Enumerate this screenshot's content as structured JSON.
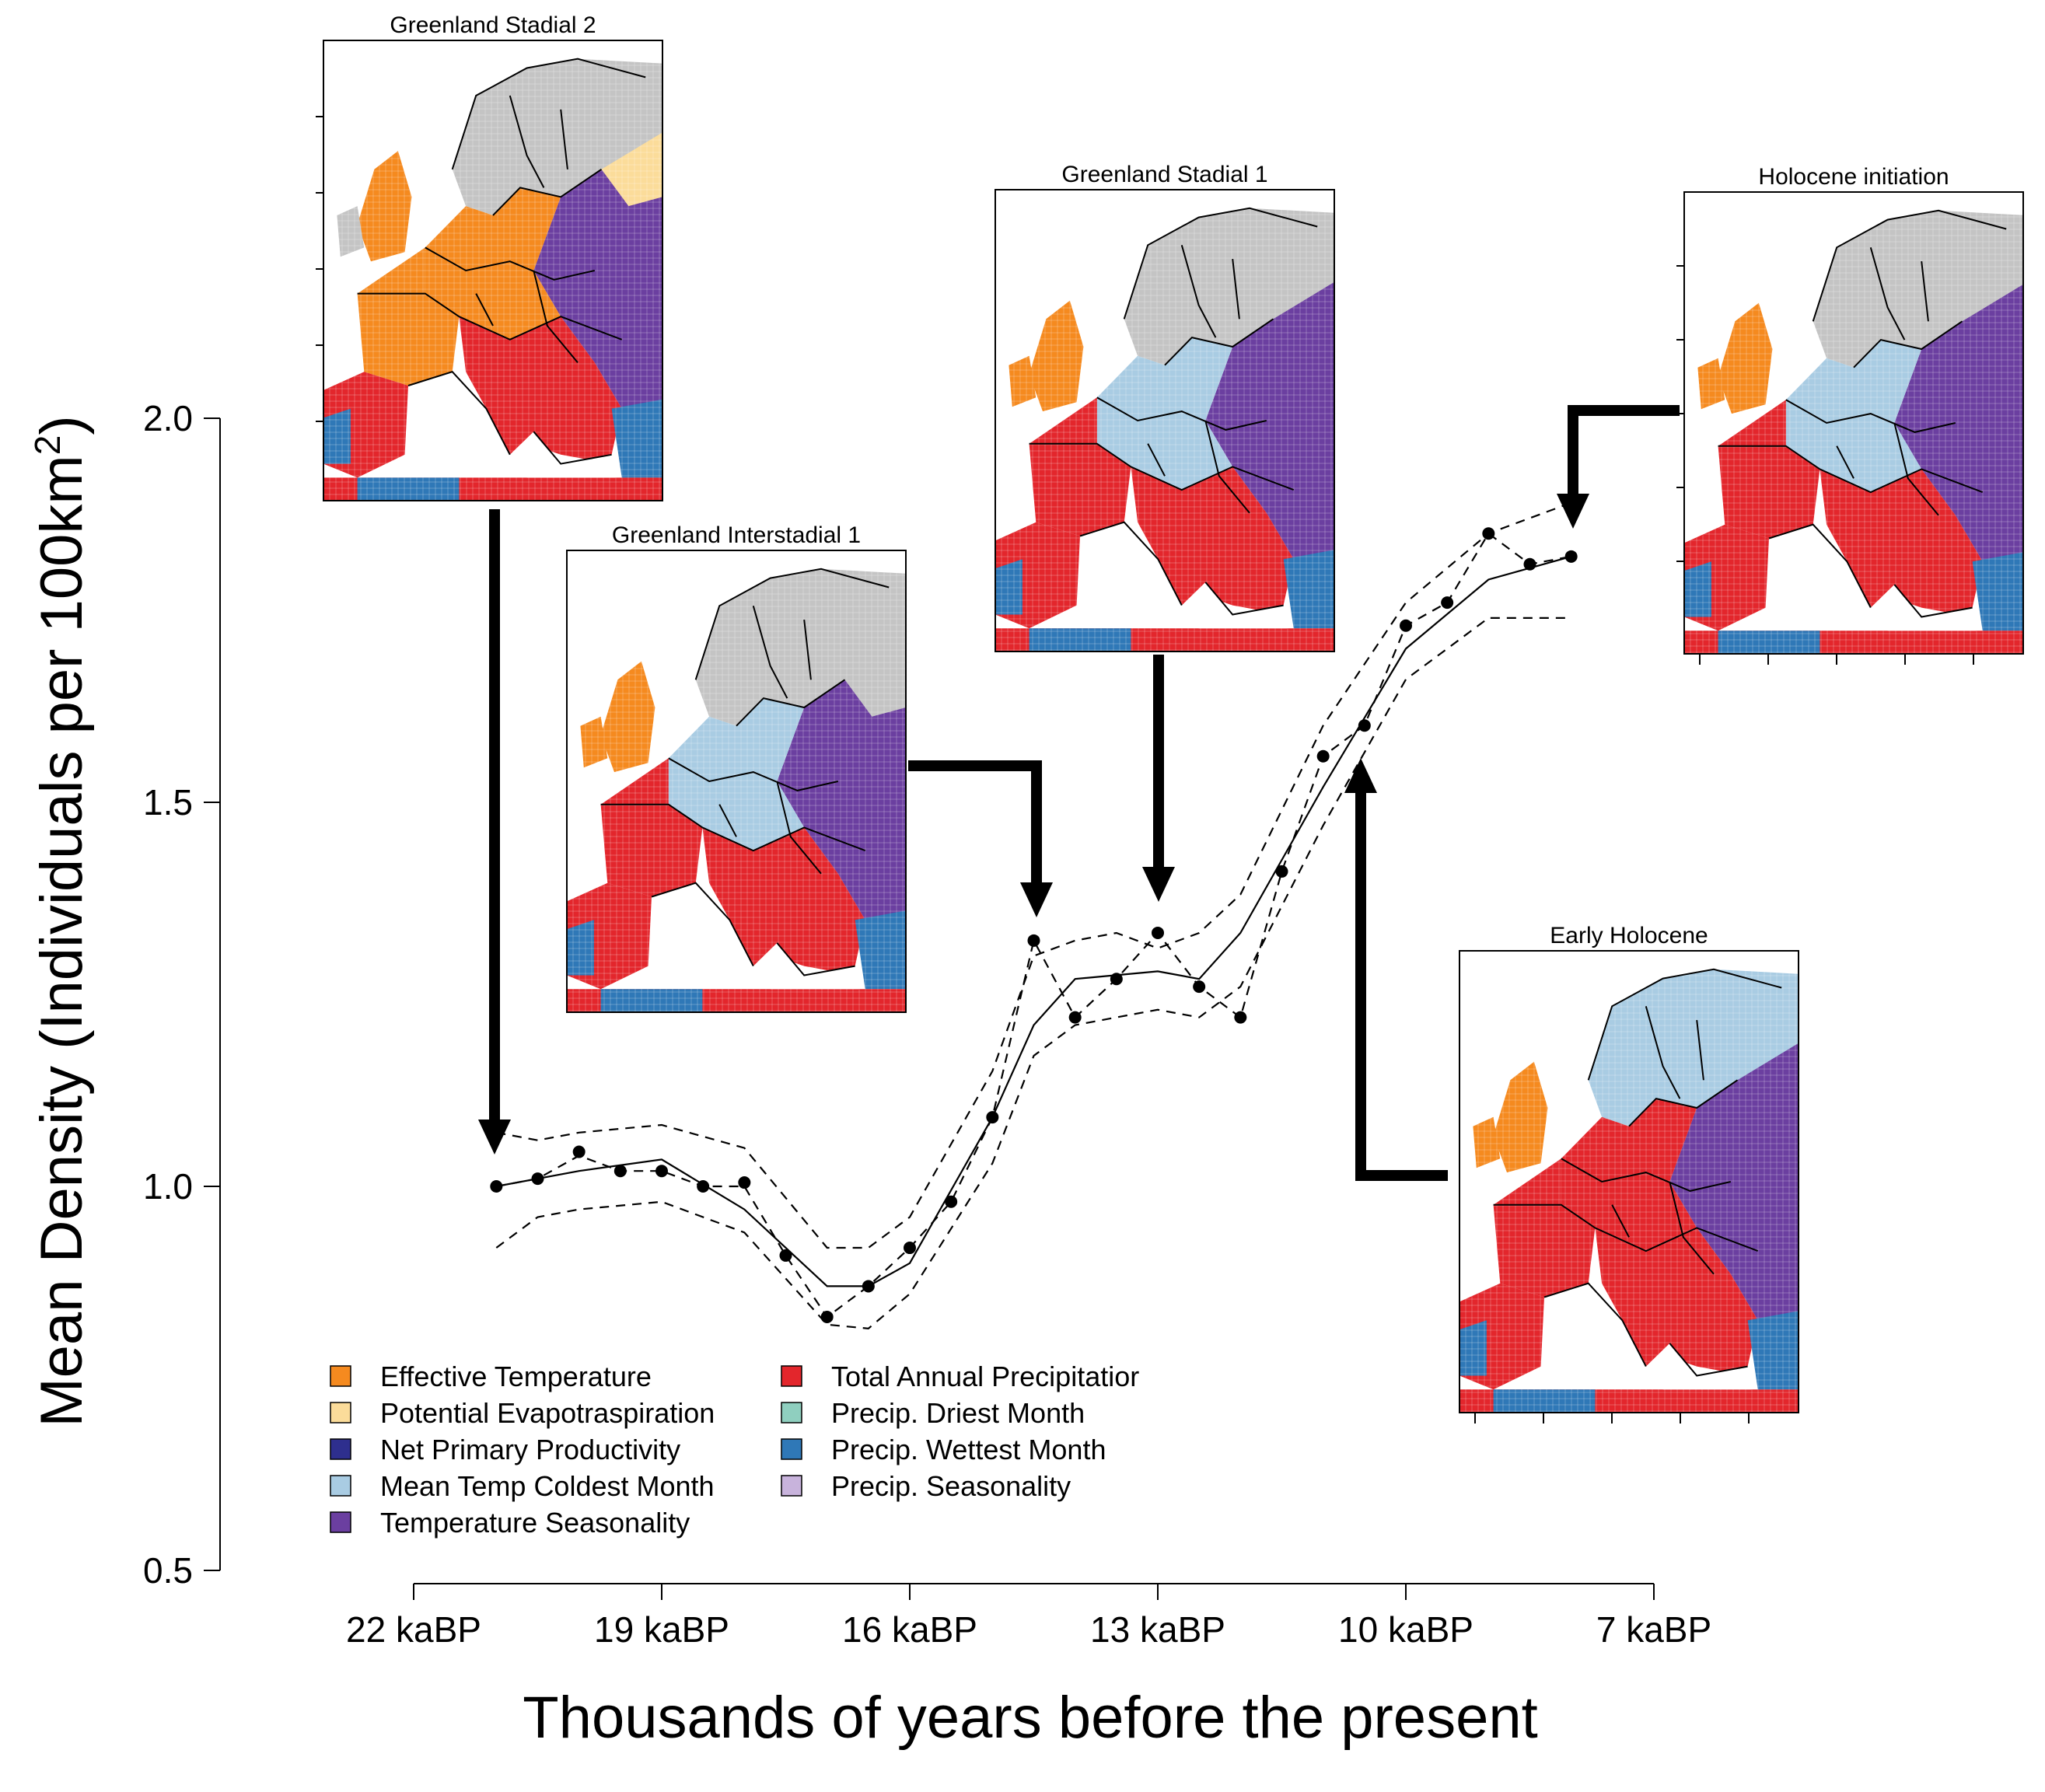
{
  "chart_data": {
    "type": "line",
    "xlabel": "Thousands of years before the present",
    "ylabel": "Mean Density (Individuals per 100km²)",
    "ylabel_main": "Mean Density (Individuals per 100km",
    "ylabel_sup": "2",
    "ylabel_tail": ")",
    "ylim": [
      0.5,
      2.0
    ],
    "y_ticks": [
      "0.5",
      "1.0",
      "1.5",
      "2.0"
    ],
    "x_ticks": [
      "22 kaBP",
      "19 kaBP",
      "16 kaBP",
      "13 kaBP",
      "10 kaBP",
      "7 kaBP"
    ],
    "x_tick_values": [
      22,
      19,
      16,
      13,
      10,
      7
    ],
    "x_reversed": true,
    "points": {
      "x": [
        21.0,
        20.5,
        20.0,
        19.5,
        19.0,
        18.5,
        18.0,
        17.5,
        17.0,
        16.5,
        16.0,
        15.5,
        15.0,
        14.5,
        14.0,
        13.5,
        13.0,
        12.5,
        12.0,
        11.5,
        11.0,
        10.5,
        10.0,
        9.5,
        9.0,
        8.5,
        8.0
      ],
      "y": [
        1.0,
        1.01,
        1.045,
        1.02,
        1.02,
        1.0,
        1.005,
        0.91,
        0.83,
        0.87,
        0.92,
        0.98,
        1.09,
        1.32,
        1.22,
        1.27,
        1.33,
        1.26,
        1.22,
        1.41,
        1.56,
        1.6,
        1.73,
        1.76,
        1.85,
        1.81,
        1.82
      ]
    },
    "series": [
      {
        "style": "solid",
        "x": [
          21.0,
          20.0,
          19.0,
          18.0,
          17.0,
          16.5,
          16.0,
          15.0,
          14.5,
          14.0,
          13.0,
          12.5,
          12.0,
          11.0,
          10.0,
          9.0,
          8.0
        ],
        "y": [
          1.0,
          1.02,
          1.035,
          0.97,
          0.87,
          0.87,
          0.9,
          1.09,
          1.21,
          1.27,
          1.28,
          1.27,
          1.33,
          1.52,
          1.7,
          1.79,
          1.82
        ]
      },
      {
        "style": "dashed",
        "x": [
          21.0,
          20.5,
          20.0,
          19.5,
          19.0,
          18.5,
          18.0,
          17.5,
          17.0,
          16.5,
          16.0,
          15.5,
          15.0,
          14.5,
          14.0,
          13.5,
          13.0,
          12.5,
          12.0,
          11.5,
          11.0,
          10.5,
          10.0,
          9.5,
          9.0,
          8.5,
          8.0
        ],
        "y": [
          1.0,
          1.01,
          1.04,
          1.02,
          1.02,
          1.0,
          1.0,
          0.91,
          0.83,
          0.87,
          0.92,
          0.98,
          1.09,
          1.32,
          1.22,
          1.27,
          1.33,
          1.26,
          1.22,
          1.41,
          1.56,
          1.6,
          1.73,
          1.76,
          1.85,
          1.81,
          1.82
        ]
      },
      {
        "style": "dashed-upper",
        "x": [
          21.0,
          20.5,
          20.0,
          19.0,
          18.0,
          17.0,
          16.5,
          16.0,
          15.0,
          14.5,
          14.0,
          13.5,
          13.0,
          12.5,
          12.0,
          11.0,
          10.0,
          9.0,
          8.0
        ],
        "y": [
          1.07,
          1.06,
          1.07,
          1.08,
          1.05,
          0.92,
          0.92,
          0.96,
          1.15,
          1.3,
          1.32,
          1.33,
          1.31,
          1.33,
          1.38,
          1.6,
          1.76,
          1.85,
          1.89
        ]
      },
      {
        "style": "dashed-lower",
        "x": [
          21.0,
          20.5,
          20.0,
          19.0,
          18.0,
          17.0,
          16.5,
          16.0,
          15.0,
          14.5,
          14.0,
          13.5,
          13.0,
          12.5,
          12.0,
          11.0,
          10.0,
          9.0,
          8.0
        ],
        "y": [
          0.92,
          0.96,
          0.97,
          0.98,
          0.94,
          0.82,
          0.815,
          0.86,
          1.03,
          1.17,
          1.21,
          1.22,
          1.23,
          1.22,
          1.26,
          1.47,
          1.66,
          1.74,
          1.74
        ]
      }
    ]
  },
  "maps": [
    {
      "title": "Greenland Stadial 2"
    },
    {
      "title": "Greenland Interstadial 1"
    },
    {
      "title": "Greenland Stadial 1"
    },
    {
      "title": "Holocene initiation"
    },
    {
      "title": "Early Holocene"
    }
  ],
  "legend": [
    {
      "label": "Effective Temperature",
      "color": "#f58a1f"
    },
    {
      "label": "Potential Evapotraspiration",
      "color": "#fbdc9a"
    },
    {
      "label": "Net Primary Productivity",
      "color": "#2e2f8e"
    },
    {
      "label": "Mean Temp Coldest Month",
      "color": "#a9cce3"
    },
    {
      "label": "Temperature Seasonality",
      "color": "#6b3fa0"
    },
    {
      "label": "Total Annual Precipitatior",
      "color": "#e3262c"
    },
    {
      "label": "Precip. Driest Month",
      "color": "#8fcfbf"
    },
    {
      "label": "Precip. Wettest Month",
      "color": "#2f78b7"
    },
    {
      "label": "Precip. Seasonality",
      "color": "#c8b3dc"
    }
  ],
  "colors": {
    "gray": "#c4c4c4",
    "orange": "#f58a1f",
    "beige": "#fbdc9a",
    "navy": "#2e2f8e",
    "lightblue": "#a9cce3",
    "purple": "#6b3fa0",
    "red": "#e3262c",
    "teal": "#8fcfbf",
    "blue": "#2f78b7",
    "lavender": "#c8b3dc"
  }
}
